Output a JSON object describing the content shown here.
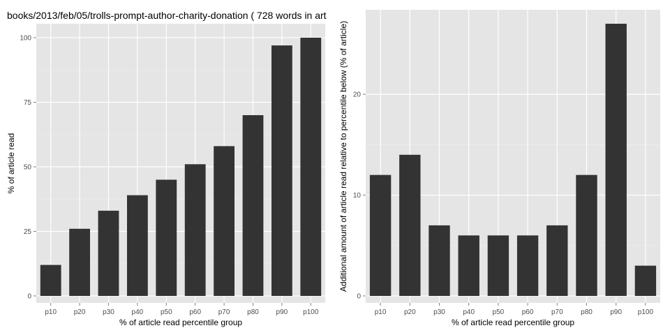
{
  "title": "books/2013/feb/05/trolls-prompt-author-charity-donation ( 728 words in art",
  "colors": {
    "panel_bg": "#e5e5e5",
    "grid_major": "#ffffff",
    "grid_minor": "#f0f0f0",
    "bar": "#333333",
    "tick_text": "#4d4d4d"
  },
  "chart_data": [
    {
      "type": "bar",
      "categories": [
        "p10",
        "p20",
        "p30",
        "p40",
        "p50",
        "p60",
        "p70",
        "p80",
        "p90",
        "p100"
      ],
      "values": [
        12,
        26,
        33,
        39,
        45,
        51,
        58,
        70,
        97,
        100
      ],
      "xlabel": "% of article read percentile group",
      "ylabel": "% of article read",
      "ylim": [
        0,
        100
      ],
      "yticks": [
        0,
        25,
        50,
        75,
        100
      ],
      "grid": true
    },
    {
      "type": "bar",
      "categories": [
        "p10",
        "p20",
        "p30",
        "p40",
        "p50",
        "p60",
        "p70",
        "p80",
        "p90",
        "p100"
      ],
      "values": [
        12,
        14,
        7,
        6,
        6,
        6,
        7,
        12,
        27,
        3
      ],
      "xlabel": "% of article read percentile group",
      "ylabel": "Additional amount of article read relative to percentile below (% of article)",
      "ylim": [
        0,
        27
      ],
      "yticks": [
        0,
        10,
        20
      ],
      "grid": true
    }
  ]
}
